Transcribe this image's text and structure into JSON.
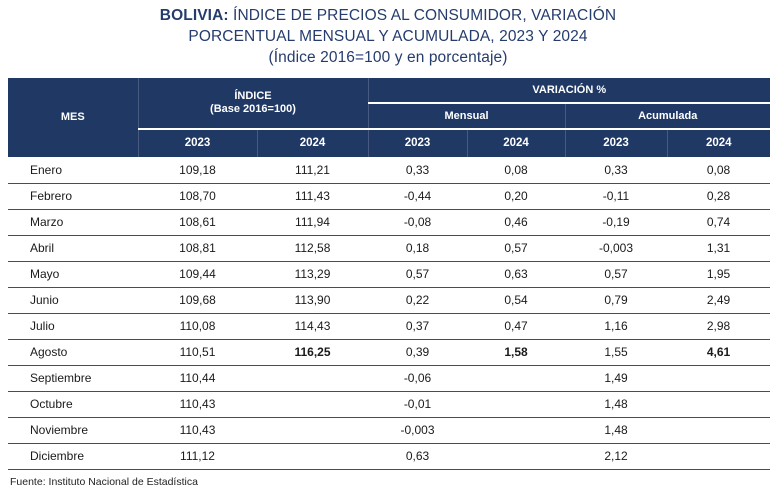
{
  "title": {
    "bold": "BOLIVIA:",
    "line1_rest": " ÍNDICE DE PRECIOS AL CONSUMIDOR, VARIACIÓN",
    "line2": "PORCENTUAL MENSUAL Y ACUMULADA, 2023 Y 2024",
    "line3": "(Índice 2016=100 y en porcentaje)"
  },
  "colors": {
    "header_background": "#1f3864",
    "title_text": "#253c6d",
    "row_separator": "#4d4d4d"
  },
  "table": {
    "headers": {
      "mes": "MES",
      "indice_line1": "ÍNDICE",
      "indice_line2": "(Base 2016=100)",
      "variacion": "VARIACIÓN %",
      "mensual": "Mensual",
      "acumulada": "Acumulada",
      "years": [
        "2023",
        "2024",
        "2023",
        "2024",
        "2023",
        "2024"
      ]
    },
    "rows": [
      {
        "mes": "Enero",
        "values": [
          "109,18",
          "111,21",
          "0,33",
          "0,08",
          "0,33",
          "0,08"
        ],
        "bold": []
      },
      {
        "mes": "Febrero",
        "values": [
          "108,70",
          "111,43",
          "-0,44",
          "0,20",
          "-0,11",
          "0,28"
        ],
        "bold": []
      },
      {
        "mes": "Marzo",
        "values": [
          "108,61",
          "111,94",
          "-0,08",
          "0,46",
          "-0,19",
          "0,74"
        ],
        "bold": []
      },
      {
        "mes": "Abril",
        "values": [
          "108,81",
          "112,58",
          "0,18",
          "0,57",
          "-0,003",
          "1,31"
        ],
        "bold": []
      },
      {
        "mes": "Mayo",
        "values": [
          "109,44",
          "113,29",
          "0,57",
          "0,63",
          "0,57",
          "1,95"
        ],
        "bold": []
      },
      {
        "mes": "Junio",
        "values": [
          "109,68",
          "113,90",
          "0,22",
          "0,54",
          "0,79",
          "2,49"
        ],
        "bold": []
      },
      {
        "mes": "Julio",
        "values": [
          "110,08",
          "114,43",
          "0,37",
          "0,47",
          "1,16",
          "2,98"
        ],
        "bold": []
      },
      {
        "mes": "Agosto",
        "values": [
          "110,51",
          "116,25",
          "0,39",
          "1,58",
          "1,55",
          "4,61"
        ],
        "bold": [
          1,
          3,
          5
        ]
      },
      {
        "mes": "Septiembre",
        "values": [
          "110,44",
          "",
          "-0,06",
          "",
          "1,49",
          ""
        ],
        "bold": []
      },
      {
        "mes": "Octubre",
        "values": [
          "110,43",
          "",
          "-0,01",
          "",
          "1,48",
          ""
        ],
        "bold": []
      },
      {
        "mes": "Noviembre",
        "values": [
          "110,43",
          "",
          "-0,003",
          "",
          "1,48",
          ""
        ],
        "bold": []
      },
      {
        "mes": "Diciembre",
        "values": [
          "111,12",
          "",
          "0,63",
          "",
          "2,12",
          ""
        ],
        "bold": []
      }
    ]
  },
  "footer": {
    "fuente": "Fuente: Instituto Nacional de Estadística"
  }
}
